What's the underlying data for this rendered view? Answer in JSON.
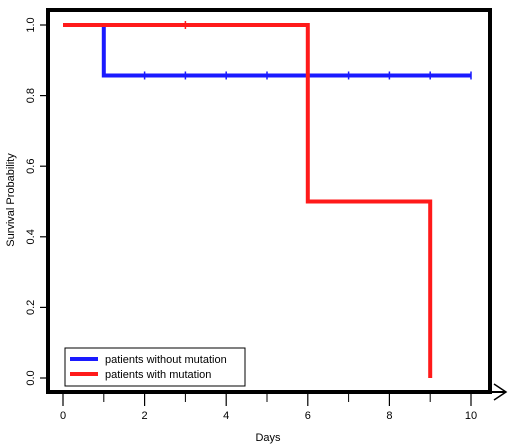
{
  "chart_data": {
    "type": "line",
    "step": true,
    "title": "",
    "xlabel": "Days",
    "ylabel": "Survival Probability",
    "xlim": [
      0,
      10
    ],
    "ylim": [
      0,
      1
    ],
    "x_ticks": [
      0,
      2,
      4,
      6,
      8,
      10
    ],
    "x_minor_ticks": [
      1,
      3,
      5,
      7,
      9
    ],
    "y_ticks": [
      0.0,
      0.2,
      0.4,
      0.6,
      0.8,
      1.0
    ],
    "x_tick_labels": [
      "0",
      "2",
      "4",
      "6",
      "8",
      "10"
    ],
    "y_tick_labels": [
      "0.0",
      "0.2",
      "0.4",
      "0.6",
      "0.8",
      "1.0"
    ],
    "grid": false,
    "legend_position": "bottom-left",
    "series": [
      {
        "name": "patients without mutation",
        "color": "#1a1aff",
        "x": [
          0,
          1,
          1,
          10
        ],
        "y": [
          1.0,
          1.0,
          0.857,
          0.857
        ],
        "censor_x": [
          2,
          3,
          4,
          5,
          6,
          7,
          8,
          9,
          10
        ],
        "censor_y": [
          0.857,
          0.857,
          0.857,
          0.857,
          0.857,
          0.857,
          0.857,
          0.857,
          0.857
        ]
      },
      {
        "name": "patients with mutation",
        "color": "#ff1a1a",
        "x": [
          0,
          6,
          6,
          9,
          9
        ],
        "y": [
          1.0,
          1.0,
          0.5,
          0.5,
          0.0
        ],
        "censor_x": [
          3
        ],
        "censor_y": [
          1.0
        ]
      }
    ]
  }
}
